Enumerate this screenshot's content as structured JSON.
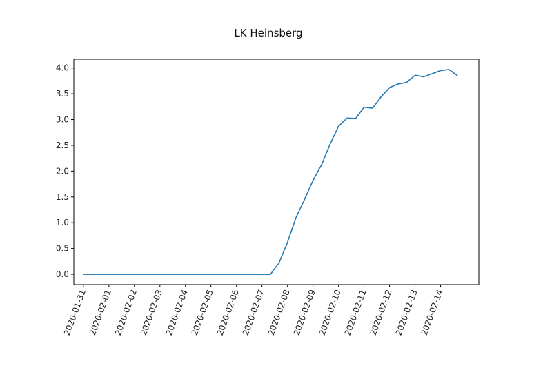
{
  "chart_data": {
    "type": "line",
    "title": "LK Heinsberg",
    "xlabel": "",
    "ylabel": "",
    "x_tick_labels": [
      "2020-01-31",
      "2020-02-01",
      "2020-02-02",
      "2020-02-03",
      "2020-02-04",
      "2020-02-05",
      "2020-02-06",
      "2020-02-07",
      "2020-02-08",
      "2020-02-09",
      "2020-02-10",
      "2020-02-11",
      "2020-02-12",
      "2020-02-13",
      "2020-02-14"
    ],
    "y_ticks": [
      0.0,
      0.5,
      1.0,
      1.5,
      2.0,
      2.5,
      3.0,
      3.5,
      4.0
    ],
    "y_tick_labels": [
      "0.0",
      "0.5",
      "1.0",
      "1.5",
      "2.0",
      "2.5",
      "3.0",
      "3.5",
      "4.0"
    ],
    "xlim": [
      "2020-01-30 15:00",
      "2020-02-15 12:00"
    ],
    "ylim": [
      -0.2,
      4.17
    ],
    "grid": false,
    "series": [
      {
        "color": "#1f77b4",
        "x": [
          "2020-01-31 00:00",
          "2020-01-31 08:00",
          "2020-01-31 16:00",
          "2020-02-01 00:00",
          "2020-02-01 08:00",
          "2020-02-01 16:00",
          "2020-02-02 00:00",
          "2020-02-02 08:00",
          "2020-02-02 16:00",
          "2020-02-03 00:00",
          "2020-02-03 08:00",
          "2020-02-03 16:00",
          "2020-02-04 00:00",
          "2020-02-04 08:00",
          "2020-02-04 16:00",
          "2020-02-05 00:00",
          "2020-02-05 08:00",
          "2020-02-05 16:00",
          "2020-02-06 00:00",
          "2020-02-06 08:00",
          "2020-02-06 16:00",
          "2020-02-07 00:00",
          "2020-02-07 08:00",
          "2020-02-07 16:00",
          "2020-02-08 00:00",
          "2020-02-08 08:00",
          "2020-02-08 16:00",
          "2020-02-09 00:00",
          "2020-02-09 08:00",
          "2020-02-09 16:00",
          "2020-02-10 00:00",
          "2020-02-10 08:00",
          "2020-02-10 16:00",
          "2020-02-11 00:00",
          "2020-02-11 08:00",
          "2020-02-11 16:00",
          "2020-02-12 00:00",
          "2020-02-12 08:00",
          "2020-02-12 16:00",
          "2020-02-13 00:00",
          "2020-02-13 08:00",
          "2020-02-13 16:00",
          "2020-02-14 00:00",
          "2020-02-14 08:00",
          "2020-02-14 16:00"
        ],
        "y": [
          0,
          0,
          0,
          0,
          0,
          0,
          0,
          0,
          0,
          0,
          0,
          0,
          0,
          0,
          0,
          0,
          0,
          0,
          0,
          0,
          0,
          0,
          0,
          0.22,
          0.62,
          1.1,
          1.45,
          1.82,
          2.12,
          2.52,
          2.87,
          3.03,
          3.02,
          3.24,
          3.22,
          3.44,
          3.62,
          3.69,
          3.72,
          3.86,
          3.83,
          3.89,
          3.95,
          3.97,
          3.85
        ]
      }
    ]
  }
}
